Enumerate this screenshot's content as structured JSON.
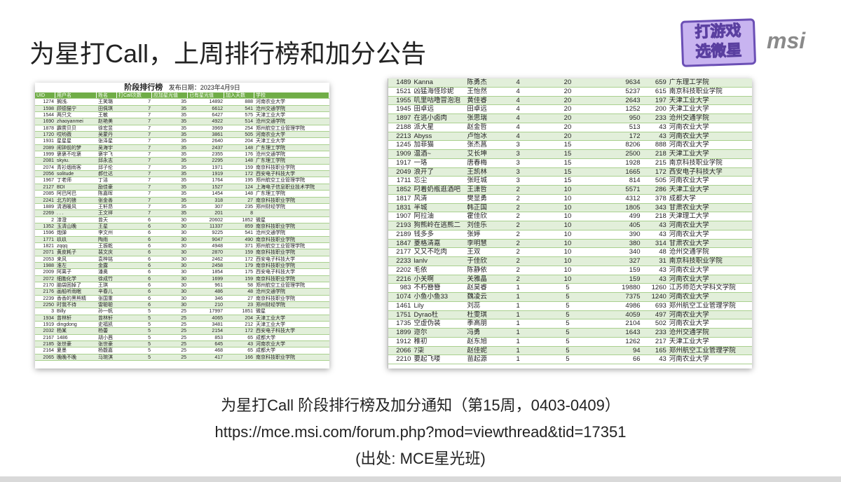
{
  "slide": {
    "title": "为星打Call，上周排行榜和加分公告"
  },
  "logo": {
    "badge_line1": "打游戏",
    "badge_line2": "选微星",
    "brand": "msi",
    "badge_color": "#c8b4f0",
    "brand_color": "#8a8a8a"
  },
  "left_table": {
    "title": "阶段排行榜",
    "publish_date": "发布日期：2023年4月9日",
    "header_color": "#70ad47",
    "stripe_color": "#e2efda",
    "columns": [
      "UID",
      "用户名",
      "姓名",
      "打Call次数",
      "应加星光值",
      "已有星光值",
      "加入天数",
      "学校"
    ],
    "rows": [
      [
        "1274",
        "搁浅.",
        "王笑璐",
        "7",
        "35",
        "14892",
        "888",
        "河南农业大学"
      ],
      [
        "1598",
        "顾德猫宁",
        "田佩琪",
        "7",
        "35",
        "6612",
        "541",
        "沧州交通学院"
      ],
      [
        "1544",
        "两只文",
        "王敏",
        "7",
        "35",
        "6427",
        "575",
        "天津工业大学"
      ],
      [
        "1690",
        "zhaoyanmei",
        "赵艳美",
        "7",
        "35",
        "4922",
        "514",
        "沧州交通学院"
      ],
      [
        "1878",
        "霹雳贝贝",
        "徐宏昱",
        "7",
        "35",
        "3969",
        "254",
        "郑州航空工业管理学院"
      ],
      [
        "1720",
        "哎哟薇",
        "吴蒙丹",
        "7",
        "35",
        "3861",
        "505",
        "河南农业大学"
      ],
      [
        "1931",
        "星星星",
        "张泽星",
        "7",
        "35",
        "2640",
        "204",
        "天津工业大学"
      ],
      [
        "2089",
        "闹钟前的梦",
        "吴海宇",
        "7",
        "35",
        "2437",
        "148",
        "广东理工学院"
      ],
      [
        "1999",
        "褒褒不吃褒",
        "褒宇飞",
        "7",
        "35",
        "2355",
        "176",
        "沧州交通学院"
      ],
      [
        "2081",
        "skyiu.",
        "邱永志",
        "7",
        "35",
        "2295",
        "148",
        "广东理工学院"
      ],
      [
        "2074",
        "青衫烟雨客",
        "邱子伦",
        "7",
        "35",
        "1971",
        "159",
        "南京科技职业学院"
      ],
      [
        "2056",
        "solitude",
        "郝仕达",
        "7",
        "35",
        "1919",
        "172",
        "西安电子科技大学"
      ],
      [
        "1967",
        "丁老师",
        "丁洁",
        "7",
        "35",
        "1764",
        "195",
        "郑州航空工业管理学院"
      ],
      [
        "2127",
        "BDI",
        "励佳豪",
        "7",
        "35",
        "1527",
        "124",
        "上海电子信息职业技术学院"
      ],
      [
        "2085",
        "阿巴阿巴",
        "陈嘉晖",
        "7",
        "35",
        "1454",
        "148",
        "广东理工学院"
      ],
      [
        "2241",
        "北方的狼",
        "张金善",
        "7",
        "35",
        "318",
        "27",
        "南京科技职业学院"
      ],
      [
        "1889",
        "清酒暖风",
        "王轩昂",
        "7",
        "35",
        "307",
        "235",
        "郑州财经学院"
      ],
      [
        "2269",
        ". . .",
        "王文祥",
        "7",
        "35",
        "201",
        "8",
        ""
      ],
      [
        "2",
        "漆澄",
        "曾天",
        "6",
        "30",
        "20602",
        "1852",
        "微星"
      ],
      [
        "1352",
        "玉清山晚",
        "王星",
        "6",
        "30",
        "11337",
        "859",
        "南京科技职业学院"
      ],
      [
        "1596",
        "炮弹",
        "李文州",
        "6",
        "30",
        "9225",
        "541",
        "沧州交通学院"
      ],
      [
        "1771",
        "玖玖",
        "陶雨",
        "6",
        "30",
        "9047",
        "490",
        "南京科技职业学院"
      ],
      [
        "1821",
        "zqqq",
        "王振乾",
        "6",
        "30",
        "4948",
        "371",
        "郑州航空工业管理学院"
      ],
      [
        "2071",
        "黄皮耗子",
        "裴文庆",
        "6",
        "30",
        "2870",
        "159",
        "南京科技职业学院"
      ],
      [
        "2053",
        "来风",
        "袁梓铭",
        "6",
        "30",
        "2462",
        "172",
        "西安电子科技大学"
      ],
      [
        "1988",
        "淮左",
        "金露",
        "6",
        "30",
        "2458",
        "179",
        "南京科技职业学院"
      ],
      [
        "2009",
        "阿离子",
        "潘奥",
        "6",
        "30",
        "1854",
        "175",
        "西安电子科技大学"
      ],
      [
        "2072",
        "细胞化学",
        "徐成竹",
        "6",
        "30",
        "1699",
        "159",
        "南京科技职业学院"
      ],
      [
        "2170",
        "脑袋困掉了",
        "王琪",
        "6",
        "30",
        "961",
        "58",
        "郑州航空工业管理学院"
      ],
      [
        "2176",
        "画船听雨眠",
        "辛春儿",
        "6",
        "30",
        "486",
        "48",
        "沧州交通学院"
      ],
      [
        "2239",
        "香香的黑熊精",
        "张国重",
        "6",
        "30",
        "346",
        "27",
        "南京科技职业学院"
      ],
      [
        "2250",
        "时我不待",
        "雷聪聪",
        "6",
        "30",
        "210",
        "23",
        "郑州财经学院"
      ],
      [
        "3",
        "Billy",
        "孙一帆",
        "5",
        "25",
        "17997",
        "1851",
        "微星"
      ],
      [
        "1934",
        "曾林轩",
        "曾林轩",
        "5",
        "25",
        "4065",
        "204",
        "天津工业大学"
      ],
      [
        "1919",
        "dingdong",
        "史福凯",
        "5",
        "25",
        "3481",
        "212",
        "天津工业大学"
      ],
      [
        "2032",
        "杨某",
        "杨蕾",
        "5",
        "25",
        "2154",
        "172",
        "西安电子科技大学"
      ],
      [
        "2167",
        "1486",
        "胡小茜",
        "5",
        "25",
        "853",
        "65",
        "成都大学"
      ],
      [
        "2185",
        "张世豪",
        "张世豪",
        "5",
        "25",
        "645",
        "43",
        "河南农业大学"
      ],
      [
        "2164",
        "夏墨",
        "杨馥嘉",
        "5",
        "25",
        "468",
        "65",
        "成都大学"
      ],
      [
        "2065",
        "晚晚不晚",
        "马琬淇",
        "5",
        "25",
        "417",
        "166",
        "南京科技职业学院"
      ]
    ]
  },
  "right_table": {
    "rows": [
      [
        "1489",
        "Kanna",
        "陈勇杰",
        "4",
        "20",
        "9634",
        "659",
        "广东理工学院"
      ],
      [
        "1521",
        "凶猛海怪珍妮",
        "王怡然",
        "4",
        "20",
        "5237",
        "615",
        "南京科技职业学院"
      ],
      [
        "1955",
        "叽里咕噜冒泡泡",
        "黄佳睿",
        "4",
        "20",
        "2643",
        "197",
        "天津工业大学"
      ],
      [
        "1945",
        "田卓远",
        "田卓远",
        "4",
        "20",
        "1252",
        "200",
        "天津工业大学"
      ],
      [
        "1897",
        "在逃小卤肉",
        "张思瑞",
        "4",
        "20",
        "950",
        "233",
        "沧州交通学院"
      ],
      [
        "2188",
        "派大星",
        "赵金哲",
        "4",
        "20",
        "513",
        "43",
        "河南农业大学"
      ],
      [
        "2213",
        "Abyss",
        "卢怡冰",
        "4",
        "20",
        "172",
        "43",
        "河南农业大学"
      ],
      [
        "1245",
        "加菲猫",
        "张杰菖",
        "3",
        "15",
        "8206",
        "888",
        "河南农业大学"
      ],
      [
        "1909",
        "温酒~",
        "艾长坤",
        "3",
        "15",
        "2500",
        "218",
        "天津工业大学"
      ],
      [
        "1917",
        "一珞",
        "唐春梅",
        "3",
        "15",
        "1928",
        "215",
        "南京科技职业学院"
      ],
      [
        "2049",
        "浪开了",
        "王凯林",
        "3",
        "15",
        "1665",
        "172",
        "西安电子科技大学"
      ],
      [
        "1711",
        "忘尘",
        "张旺城",
        "3",
        "15",
        "814",
        "505",
        "河南农业大学"
      ],
      [
        "1852",
        "叼着奶瓶逛酒吧",
        "王潇哲",
        "2",
        "10",
        "5571",
        "286",
        "天津工业大学"
      ],
      [
        "1817",
        "风清",
        "樊显勇",
        "2",
        "10",
        "4312",
        "378",
        "成都大学"
      ],
      [
        "1831",
        "半城",
        "韩正国",
        "2",
        "10",
        "1805",
        "343",
        "甘肃农业大学"
      ],
      [
        "1907",
        "阿拉油",
        "霍佳欣",
        "2",
        "10",
        "499",
        "218",
        "天津理工大学"
      ],
      [
        "2193",
        "狗熊岭在逃熊二",
        "刘佳乐",
        "2",
        "10",
        "405",
        "43",
        "河南农业大学"
      ],
      [
        "2189",
        "钱多多",
        "张婷",
        "2",
        "10",
        "390",
        "43",
        "河南农业大学"
      ],
      [
        "1847",
        "菱格清嘉",
        "李明慧",
        "2",
        "10",
        "380",
        "314",
        "甘肃农业大学"
      ],
      [
        "2177",
        "又又不吃肉",
        "王双",
        "2",
        "10",
        "340",
        "48",
        "沧州交通学院"
      ],
      [
        "2233",
        "lanlv",
        "于佳欣",
        "2",
        "10",
        "327",
        "31",
        "南京科技职业学院"
      ],
      [
        "2202",
        "毛依",
        "陈静依",
        "2",
        "10",
        "159",
        "43",
        "河南农业大学"
      ],
      [
        "2216",
        "小关啊",
        "关雅晶",
        "2",
        "10",
        "159",
        "43",
        "河南农业大学"
      ],
      [
        "983",
        "不朽簪簪",
        "赵昊睿",
        "1",
        "5",
        "19880",
        "1260",
        "江苏师范大学科文学院"
      ],
      [
        "1074",
        "小鱼小鱼33",
        "魏凌云",
        "1",
        "5",
        "7375",
        "1240",
        "河南农业大学"
      ],
      [
        "1461",
        "Lily",
        "刘蕊",
        "1",
        "5",
        "4986",
        "693",
        "郑州航空工业管理学院"
      ],
      [
        "1751",
        "Dyrao杜",
        "杜雯琪",
        "1",
        "5",
        "4059",
        "497",
        "河南农业大学"
      ],
      [
        "1735",
        "空虚伪装",
        "季高朋",
        "1",
        "5",
        "2104",
        "502",
        "河南农业大学"
      ],
      [
        "1899",
        "迩尔",
        "冯勇",
        "1",
        "5",
        "1643",
        "233",
        "沧州交通学院"
      ],
      [
        "1912",
        "稚初",
        "赵东旭",
        "1",
        "5",
        "1262",
        "217",
        "天津工业大学"
      ],
      [
        "2066",
        "7柒",
        "赵佳妮",
        "1",
        "5",
        "94",
        "165",
        "郑州航空工业管理学院"
      ],
      [
        "2210",
        "要起飞喽",
        "苗起源",
        "1",
        "5",
        "66",
        "43",
        "河南农业大学"
      ]
    ]
  },
  "caption": {
    "line1": "为星打Call 阶段排行榜及加分通知（第15周，0403-0409）",
    "line2": "https://mce.msi.com/forum.php?mod=viewthread&tid=17351",
    "line3": "(出处: MCE星光班)"
  }
}
